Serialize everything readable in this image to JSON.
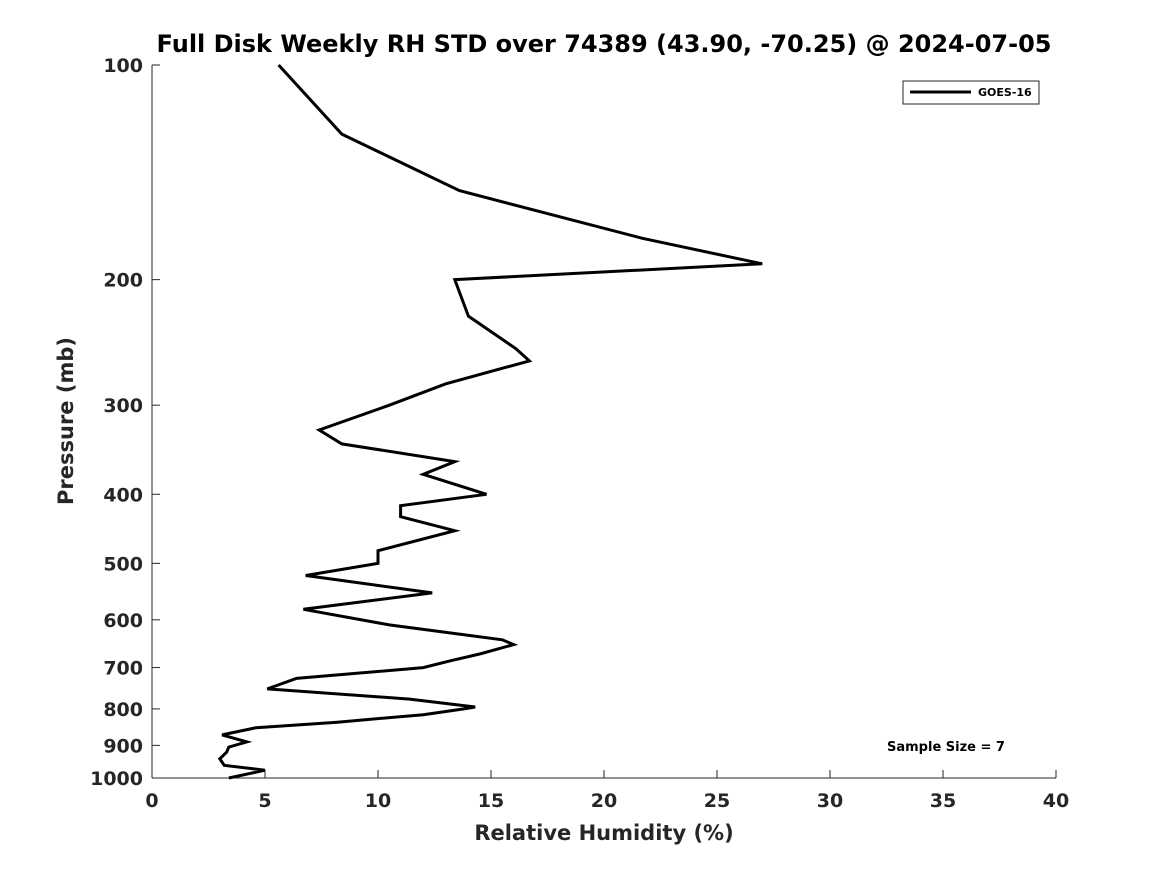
{
  "chart_data": {
    "type": "line",
    "title": "Full Disk Weekly RH STD over 74389 (43.90, -70.25) @ 2024-07-05",
    "xlabel": "Relative Humidity (%)",
    "ylabel": "Pressure (mb)",
    "xlim": [
      0,
      40
    ],
    "ylim": [
      100,
      1000
    ],
    "y_scale": "log",
    "y_reversed": true,
    "x_ticks": [
      0,
      5,
      10,
      15,
      20,
      25,
      30,
      35,
      40
    ],
    "x_tick_labels": [
      "0",
      "5",
      "10",
      "15",
      "20",
      "25",
      "30",
      "35",
      "40"
    ],
    "y_ticks": [
      100,
      200,
      300,
      400,
      500,
      600,
      700,
      800,
      900,
      1000
    ],
    "y_tick_labels": [
      "100",
      "200",
      "300",
      "400",
      "500",
      "600",
      "700",
      "800",
      "900",
      "1000"
    ],
    "grid": false,
    "legend_position": "top-right",
    "annotation": "Sample Size = 7",
    "series": [
      {
        "name": "GOES-16",
        "color": "#000000",
        "points": [
          [
            5.6,
            100
          ],
          [
            8.4,
            125
          ],
          [
            13.6,
            150
          ],
          [
            21.7,
            175
          ],
          [
            27.0,
            190
          ],
          [
            13.4,
            200
          ],
          [
            14.0,
            225
          ],
          [
            16.1,
            250
          ],
          [
            16.7,
            260
          ],
          [
            13.0,
            280
          ],
          [
            10.5,
            300
          ],
          [
            7.4,
            325
          ],
          [
            8.4,
            340
          ],
          [
            13.4,
            360
          ],
          [
            12.0,
            375
          ],
          [
            14.8,
            400
          ],
          [
            11.0,
            415
          ],
          [
            11.0,
            430
          ],
          [
            13.4,
            450
          ],
          [
            10.0,
            480
          ],
          [
            10.0,
            500
          ],
          [
            6.8,
            520
          ],
          [
            12.4,
            550
          ],
          [
            6.7,
            580
          ],
          [
            10.5,
            610
          ],
          [
            15.5,
            640
          ],
          [
            16.0,
            650
          ],
          [
            14.5,
            670
          ],
          [
            13.2,
            685
          ],
          [
            12.0,
            700
          ],
          [
            6.4,
            725
          ],
          [
            5.1,
            750
          ],
          [
            11.4,
            775
          ],
          [
            14.3,
            795
          ],
          [
            13.8,
            800
          ],
          [
            12.0,
            815
          ],
          [
            8.2,
            835
          ],
          [
            4.6,
            850
          ],
          [
            3.1,
            870
          ],
          [
            4.2,
            890
          ],
          [
            3.4,
            905
          ],
          [
            3.3,
            920
          ],
          [
            3.0,
            940
          ],
          [
            3.2,
            960
          ],
          [
            5.0,
            975
          ],
          [
            3.4,
            1000
          ]
        ]
      }
    ]
  }
}
